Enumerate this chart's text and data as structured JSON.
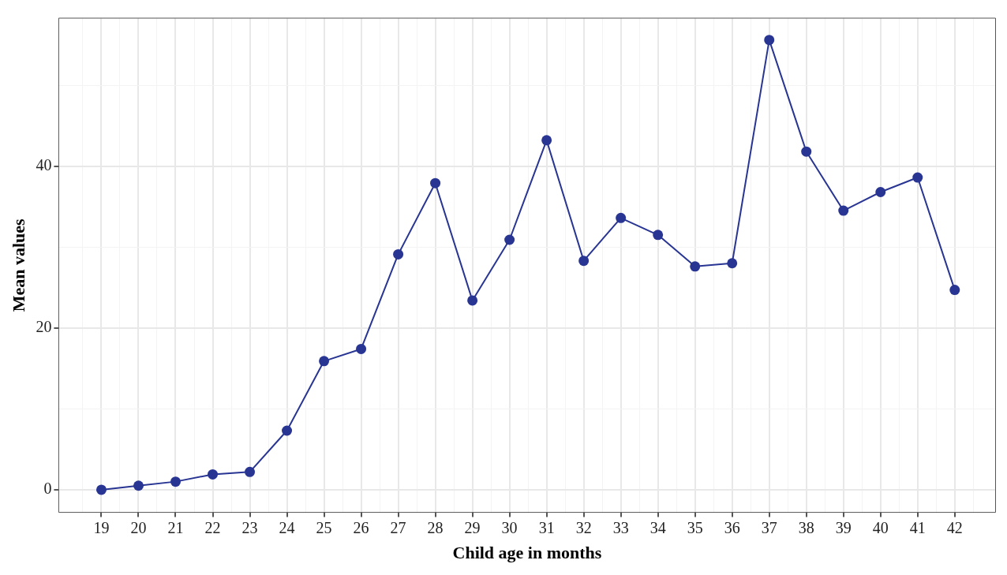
{
  "chart_data": {
    "type": "line",
    "xlabel": "Child age in months",
    "ylabel": "Mean values",
    "x": [
      19,
      20,
      21,
      22,
      23,
      24,
      25,
      26,
      27,
      28,
      29,
      30,
      31,
      32,
      33,
      34,
      35,
      36,
      37,
      38,
      39,
      40,
      41,
      42
    ],
    "series": [
      {
        "color": "#283593",
        "values": [
          0,
          0.5,
          1.0,
          1.9,
          2.2,
          7.3,
          15.9,
          17.4,
          29.1,
          37.9,
          23.4,
          30.9,
          43.2,
          28.3,
          33.6,
          31.5,
          27.6,
          28.0,
          55.6,
          41.8,
          34.5,
          36.8,
          38.6,
          24.7
        ]
      }
    ],
    "xlim": [
      17.85,
      43.1
    ],
    "ylim": [
      -2.8,
      58.3
    ],
    "xticks": [
      {
        "value": 18.5,
        "label": null
      },
      19,
      {
        "value": 19.5,
        "label": null
      },
      20,
      {
        "value": 20.5,
        "label": null
      },
      21,
      {
        "value": 21.5,
        "label": null
      },
      22,
      {
        "value": 22.5,
        "label": null
      },
      23,
      {
        "value": 23.5,
        "label": null
      },
      24,
      {
        "value": 24.5,
        "label": null
      },
      25,
      {
        "value": 25.5,
        "label": null
      },
      26,
      {
        "value": 26.5,
        "label": null
      },
      27,
      {
        "value": 27.5,
        "label": null
      },
      28,
      {
        "value": 28.5,
        "label": null
      },
      29,
      {
        "value": 29.5,
        "label": null
      },
      30,
      {
        "value": 30.5,
        "label": null
      },
      31,
      {
        "value": 31.5,
        "label": null
      },
      32,
      {
        "value": 32.5,
        "label": null
      },
      33,
      {
        "value": 33.5,
        "label": null
      },
      34,
      {
        "value": 34.5,
        "label": null
      },
      35,
      {
        "value": 35.5,
        "label": null
      },
      36,
      {
        "value": 36.5,
        "label": null
      },
      37,
      {
        "value": 37.5,
        "label": null
      },
      38,
      {
        "value": 38.5,
        "label": null
      },
      39,
      {
        "value": 39.5,
        "label": null
      },
      40,
      {
        "value": 40.5,
        "label": null
      },
      41,
      {
        "value": 41.5,
        "label": null
      },
      42,
      {
        "value": 42.5,
        "label": null
      }
    ],
    "yticks": [
      0,
      {
        "value": 10,
        "label": null
      },
      20,
      {
        "value": 30,
        "label": null
      },
      40,
      {
        "value": 50,
        "label": null
      }
    ],
    "grid": true,
    "legend": false,
    "marker": "circle",
    "line_style": "solid"
  }
}
